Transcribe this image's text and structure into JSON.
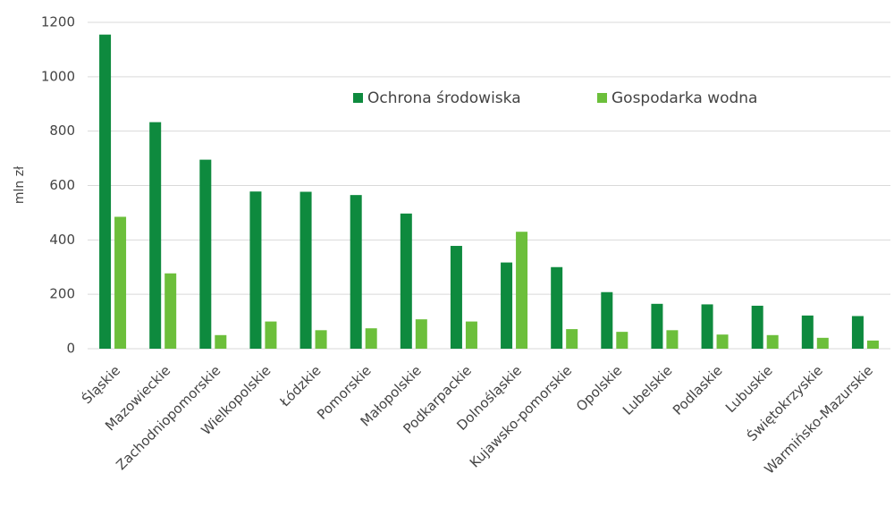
{
  "chart_data": {
    "type": "bar",
    "ylabel": "mln zł",
    "categories": [
      "Śląskie",
      "Mazowieckie",
      "Zachodniopomorskie",
      "Wielkopolskie",
      "Łódzkie",
      "Pomorskie",
      "Małopolskie",
      "Podkarpackie",
      "Dolnośląskie",
      "Kujawsko-pomorskie",
      "Opolskie",
      "Lubelskie",
      "Podlaskie",
      "Lubuskie",
      "Świętokrzyskie",
      "Warmińsko-Mazurskie"
    ],
    "series": [
      {
        "name": "Ochrona środowiska",
        "color": "#0e8a3e",
        "values": [
          1155,
          833,
          695,
          578,
          577,
          565,
          497,
          378,
          317,
          300,
          208,
          165,
          163,
          158,
          122,
          120
        ]
      },
      {
        "name": "Gospodarka wodna",
        "color": "#6cbf3b",
        "values": [
          485,
          277,
          50,
          100,
          68,
          75,
          108,
          100,
          430,
          72,
          62,
          68,
          52,
          50,
          40,
          30
        ]
      }
    ],
    "ylim": [
      0,
      1200
    ],
    "yticks": [
      0,
      200,
      400,
      600,
      800,
      1000,
      1200
    ],
    "grid": true
  }
}
